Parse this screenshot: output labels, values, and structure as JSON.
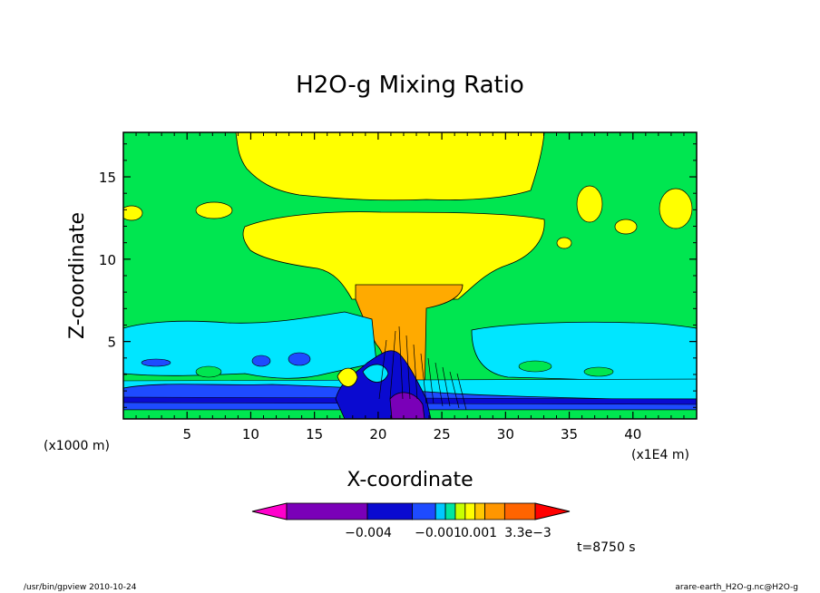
{
  "chart_data": {
    "type": "heatmap",
    "title": "H2O-g Mixing Ratio",
    "xlabel": "X-coordinate",
    "ylabel": "Z-coordinate",
    "x_unit_left": "(x1000 m)",
    "x_unit_right": "(x1E4 m)",
    "xlim": [
      0,
      45
    ],
    "ylim": [
      0.3,
      17.7
    ],
    "x_ticks": [
      5,
      10,
      15,
      20,
      25,
      30,
      35,
      40
    ],
    "y_ticks": [
      5,
      10,
      15
    ],
    "colorbar": {
      "colors": [
        "#ff00cc",
        "#7a00b8",
        "#0a0ad0",
        "#1e4bff",
        "#00c8ff",
        "#00e6a0",
        "#c8ff00",
        "#ffff00",
        "#ffc800",
        "#ff9600",
        "#ff6400",
        "#ff0000"
      ],
      "tick_labels": [
        "−0.004",
        "−0.001",
        "0.001",
        "3.3e−3"
      ]
    },
    "regions": [
      {
        "name": "background",
        "color": "#00e650"
      },
      {
        "name": "upper-moist-layer",
        "color": "#ffff00"
      },
      {
        "name": "anvil",
        "color": "#ffff00"
      },
      {
        "name": "core",
        "color": "#ffaa00"
      },
      {
        "name": "low-level-cyan",
        "color": "#00e6ff"
      },
      {
        "name": "boundary-layer-blue",
        "color": "#1e4bff"
      }
    ],
    "grid": false
  },
  "time_label": "t=8750 s",
  "footer": {
    "left": "/usr/bin/gpview   2010-10-24",
    "right": "arare-earth_H2O-g.nc@H2O-g"
  }
}
